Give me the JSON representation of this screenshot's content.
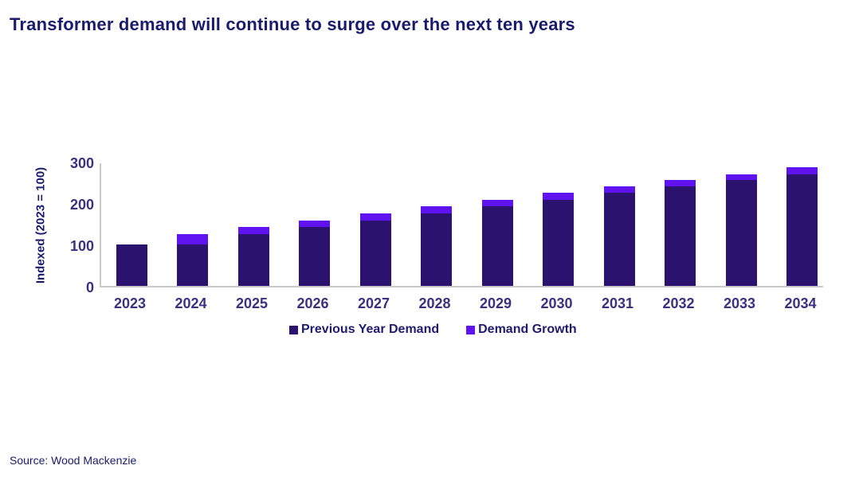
{
  "page": {
    "title": "Transformer demand will continue to surge over the next ten years",
    "source": "Source: Wood Mackenzie"
  },
  "colors": {
    "title_text": "#1A1A6E",
    "axis_text": "#3A3180",
    "legend_text": "#1F1B6E",
    "previous_year_demand": "#2A126E",
    "demand_growth": "#5E13F0",
    "axis_line": "#C9C9C9",
    "background": "#FFFFFF"
  },
  "chart_data": {
    "type": "bar",
    "stacked": true,
    "title": "Transformer demand will continue to surge over the next ten years",
    "xlabel": "",
    "ylabel": "Indexed (2023 = 100)",
    "ylim": [
      0,
      300
    ],
    "yticks": [
      0,
      100,
      200,
      300
    ],
    "grid": false,
    "legend_position": "bottom",
    "categories": [
      "2023",
      "2024",
      "2025",
      "2026",
      "2027",
      "2028",
      "2029",
      "2030",
      "2031",
      "2032",
      "2033",
      "2034"
    ],
    "series": [
      {
        "name": "Previous Year Demand",
        "color": "#2A126E",
        "values": [
          100,
          100,
          125,
          142,
          158,
          175,
          192,
          208,
          225,
          240,
          255,
          270
        ]
      },
      {
        "name": "Demand Growth",
        "color": "#5E13F0",
        "values": [
          0,
          25,
          17,
          16,
          17,
          17,
          16,
          17,
          15,
          15,
          15,
          16
        ]
      }
    ],
    "stacked_totals": [
      100,
      125,
      142,
      158,
      175,
      192,
      208,
      225,
      240,
      255,
      270,
      286
    ]
  }
}
